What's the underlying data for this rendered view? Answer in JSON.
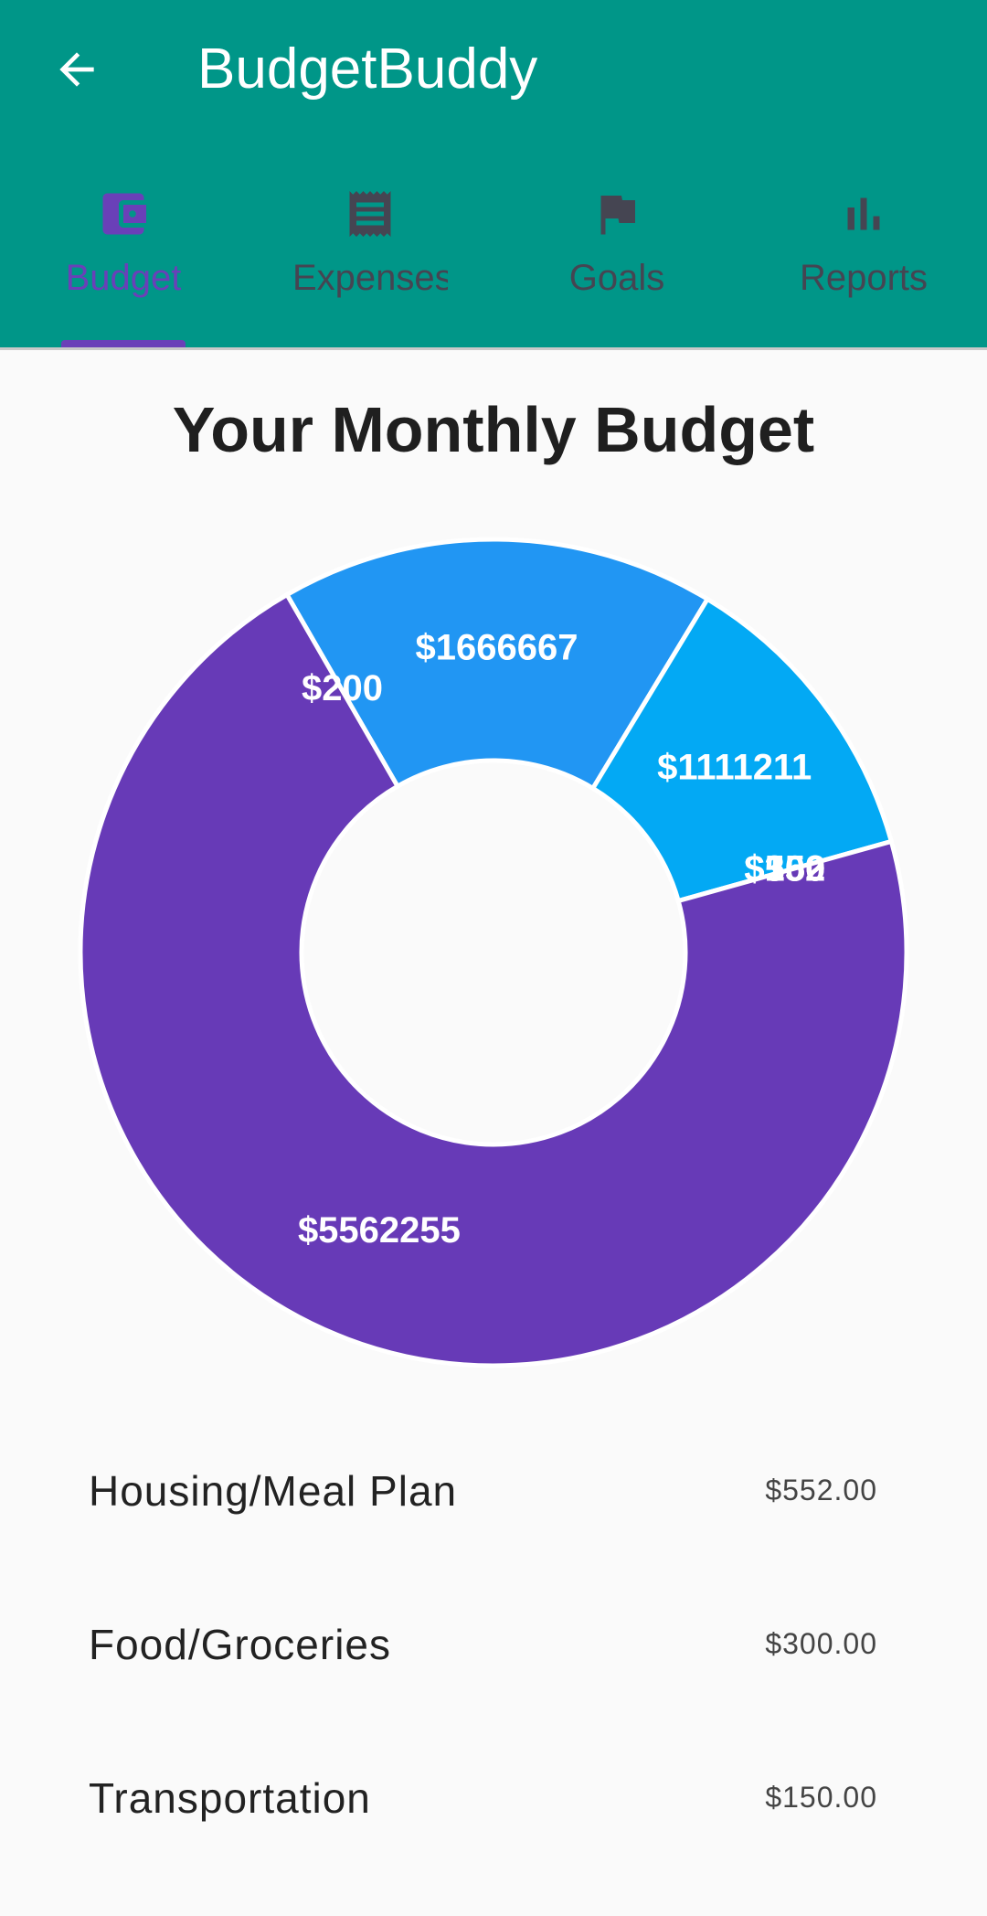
{
  "app_bar": {
    "title": "BudgetBuddy",
    "back_icon": "arrow-back-icon",
    "background": "#009688"
  },
  "tabs": [
    {
      "label": "Budget",
      "icon": "wallet-icon",
      "active": true
    },
    {
      "label": "Expenses",
      "icon": "receipt-icon",
      "active": false
    },
    {
      "label": "Goals",
      "icon": "flag-icon",
      "active": false
    },
    {
      "label": "Reports",
      "icon": "bar-chart-icon",
      "active": false
    }
  ],
  "colors": {
    "accent": "#6a40b8",
    "tab_inactive": "#454552",
    "slice_purple": "#673ab7",
    "slice_blue": "#2196f3",
    "slice_light_blue": "#03a9f4"
  },
  "page_title": "Your Monthly Budget",
  "chart_data": {
    "type": "pie",
    "style": "donut",
    "slices": [
      {
        "label": "$200",
        "fraction": 0.0,
        "color": "#673ab7"
      },
      {
        "label": "$1666667",
        "fraction": 0.17,
        "color": "#2196f3"
      },
      {
        "label": "$1111211",
        "fraction": 0.12,
        "color": "#03a9f4"
      },
      {
        "label": "$552",
        "fraction": 0.0,
        "color": "#673ab7"
      },
      {
        "label": "$300",
        "fraction": 0.0,
        "color": "#673ab7"
      },
      {
        "label": "$150",
        "fraction": 0.0,
        "color": "#673ab7"
      },
      {
        "label": "$5562255",
        "fraction": 0.71,
        "color": "#673ab7"
      }
    ]
  },
  "budget_items": [
    {
      "name": "Housing/Meal Plan",
      "amount": "$552.00"
    },
    {
      "name": "Food/Groceries",
      "amount": "$300.00"
    },
    {
      "name": "Transportation",
      "amount": "$150.00"
    }
  ]
}
